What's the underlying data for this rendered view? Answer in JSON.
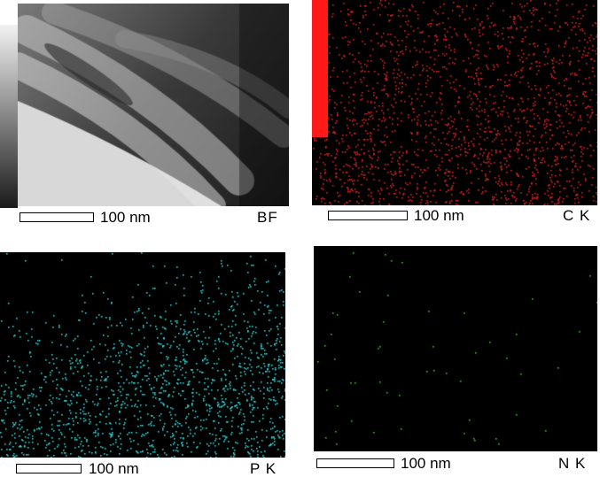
{
  "panels": [
    {
      "id": "bf",
      "scale_label": "100 nm",
      "tag": "BF",
      "dot_color": null
    },
    {
      "id": "ck",
      "scale_label": "100 nm",
      "tag": "C K",
      "dot_color": "#e0241d",
      "bar_color": "#ff1a1a"
    },
    {
      "id": "pk",
      "scale_label": "100 nm",
      "tag": "P K",
      "dot_color": "#35d6d6"
    },
    {
      "id": "nk",
      "scale_label": "100 nm",
      "tag": "N K",
      "dot_color": "#39c239"
    }
  ]
}
